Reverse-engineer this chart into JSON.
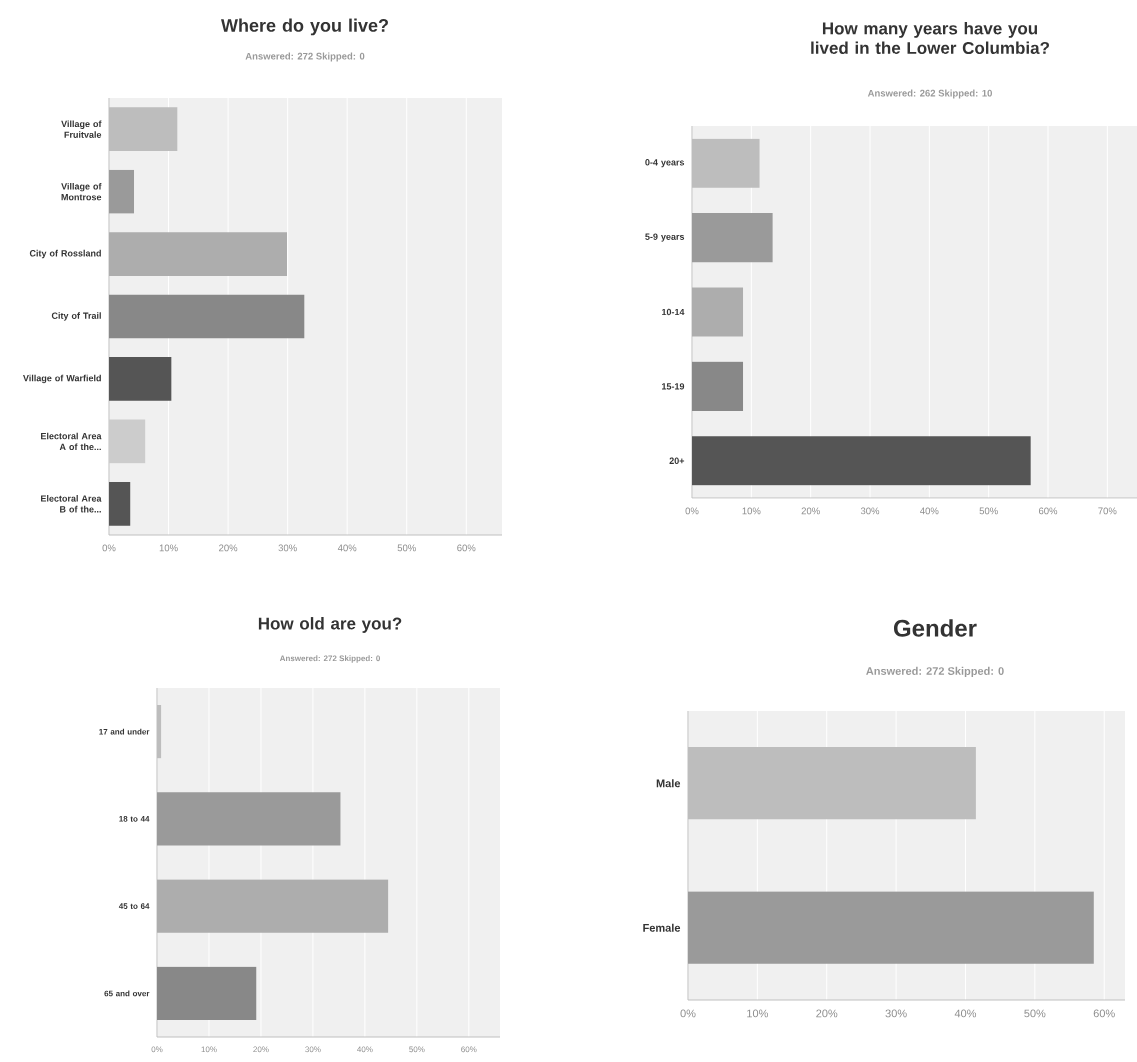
{
  "chart_data": [
    {
      "type": "bar",
      "orientation": "horizontal",
      "title": "Where do you live?",
      "subtitle": "Answered: 272    Skipped: 0",
      "grid": "x",
      "categories": [
        "Village of Fruitvale",
        "Village of Montrose",
        "City of Rossland",
        "City of Trail",
        "Village of Warfield",
        "Electoral Area A of the...",
        "Electoral Area B of the..."
      ],
      "values": [
        11.5,
        4.2,
        29.9,
        32.8,
        10.5,
        6.1,
        3.6
      ],
      "colors": [
        "#bdbdbd",
        "#9a9a9a",
        "#adadad",
        "#888888",
        "#555555",
        "#cccccc",
        "#555555"
      ],
      "xlim": [
        0,
        66
      ],
      "xticks": [
        {
          "value": 0,
          "label": "0%"
        },
        {
          "value": 10,
          "label": "10%"
        },
        {
          "value": 20,
          "label": "20%"
        },
        {
          "value": 30,
          "label": "30%"
        },
        {
          "value": 40,
          "label": "40%"
        },
        {
          "value": 50,
          "label": "50%"
        },
        {
          "value": 60,
          "label": "60%"
        }
      ]
    },
    {
      "type": "bar",
      "orientation": "horizontal",
      "title": "How many years have you lived in the Lower Columbia?",
      "subtitle": "Answered: 262    Skipped: 10",
      "grid": "x",
      "categories": [
        "0-4 years",
        "5-9 years",
        "10-14",
        "15-19",
        "20+"
      ],
      "values": [
        11.4,
        13.6,
        8.6,
        8.6,
        57.1
      ],
      "colors": [
        "#bdbdbd",
        "#9a9a9a",
        "#adadad",
        "#888888",
        "#555555"
      ],
      "xlim": [
        0,
        75
      ],
      "xticks": [
        {
          "value": 0,
          "label": "0%"
        },
        {
          "value": 10,
          "label": "10%"
        },
        {
          "value": 20,
          "label": "20%"
        },
        {
          "value": 30,
          "label": "30%"
        },
        {
          "value": 40,
          "label": "40%"
        },
        {
          "value": 50,
          "label": "50%"
        },
        {
          "value": 60,
          "label": "60%"
        },
        {
          "value": 70,
          "label": "70%"
        }
      ]
    },
    {
      "type": "bar",
      "orientation": "horizontal",
      "title": "How old are you?",
      "subtitle": "Answered: 272    Skipped: 0",
      "grid": "x",
      "categories": [
        "17 and under",
        "18 to 44",
        "45 to 64",
        "65 and over"
      ],
      "values": [
        0.8,
        35.3,
        44.5,
        19.1
      ],
      "colors": [
        "#bdbdbd",
        "#9a9a9a",
        "#adadad",
        "#888888"
      ],
      "xlim": [
        0,
        66
      ],
      "xticks": [
        {
          "value": 0,
          "label": "0%"
        },
        {
          "value": 10,
          "label": "10%"
        },
        {
          "value": 20,
          "label": "20%"
        },
        {
          "value": 30,
          "label": "30%"
        },
        {
          "value": 40,
          "label": "40%"
        },
        {
          "value": 50,
          "label": "50%"
        },
        {
          "value": 60,
          "label": "60%"
        }
      ]
    },
    {
      "type": "bar",
      "orientation": "horizontal",
      "title": "Gender",
      "subtitle": "Answered: 272    Skipped: 0",
      "grid": "x",
      "categories": [
        "Male",
        "Female"
      ],
      "values": [
        41.5,
        58.5
      ],
      "colors": [
        "#bdbdbd",
        "#9a9a9a"
      ],
      "xlim": [
        0,
        63
      ],
      "xticks": [
        {
          "value": 0,
          "label": "0%"
        },
        {
          "value": 10,
          "label": "10%"
        },
        {
          "value": 20,
          "label": "20%"
        },
        {
          "value": 30,
          "label": "30%"
        },
        {
          "value": 40,
          "label": "40%"
        },
        {
          "value": 50,
          "label": "50%"
        },
        {
          "value": 60,
          "label": "60%"
        }
      ]
    }
  ]
}
